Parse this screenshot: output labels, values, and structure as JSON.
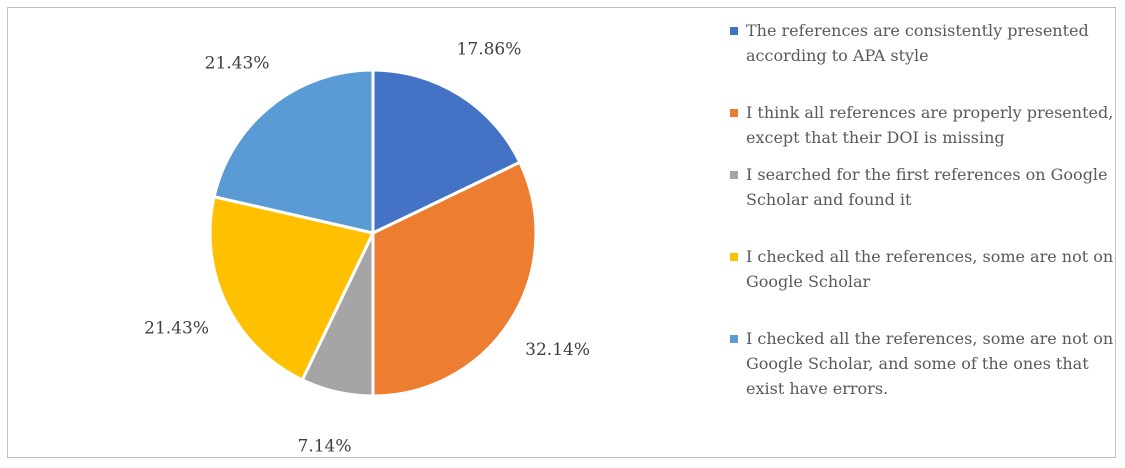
{
  "chart_data": {
    "type": "pie",
    "title": "",
    "slices": [
      {
        "label": "The references are consistently presented according to APA style",
        "value": 17.86,
        "display": "17.86%",
        "color": "#4472c4"
      },
      {
        "label": "I think all references are properly presented, except that their DOI is missing",
        "value": 32.14,
        "display": "32.14%",
        "color": "#ed7d31"
      },
      {
        "label": "I searched for the first references on Google Scholar and found it",
        "value": 7.14,
        "display": "7.14%",
        "color": "#a5a5a5"
      },
      {
        "label": "I checked all the references, some are not on Google Scholar",
        "value": 21.43,
        "display": "21.43%",
        "color": "#ffc000"
      },
      {
        "label": "I checked all the references, some are not on Google Scholar, and some of the ones that exist have errors.",
        "value": 21.43,
        "display": "21.43%",
        "color": "#5b9bd5"
      }
    ],
    "legend_position": "right",
    "start_angle": "top, clockwise"
  }
}
